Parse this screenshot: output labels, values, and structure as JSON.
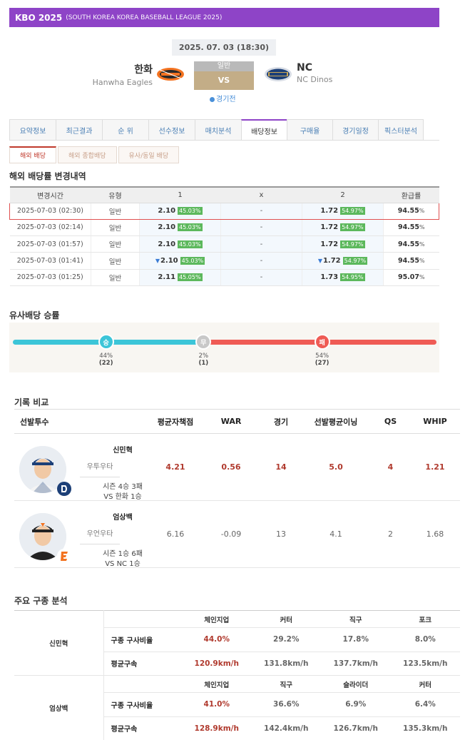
{
  "league": {
    "name": "KBO 2025",
    "sub": "(SOUTH KOREA KOREA BASEBALL LEAGUE 2025)"
  },
  "match": {
    "datetime": "2025. 07. 03 (18:30)",
    "home": {
      "kr": "한화",
      "en": "Hanwha Eagles"
    },
    "away": {
      "kr": "NC",
      "en": "NC Dinos"
    },
    "type": "일반",
    "vs": "VS",
    "status": "경기전"
  },
  "tabs": [
    "요약정보",
    "최근결과",
    "순 위",
    "선수정보",
    "매치분석",
    "배당정보",
    "구매율",
    "경기일정",
    "픽스터분석"
  ],
  "active_tab": 5,
  "subtabs": [
    "해외 배당",
    "해외 종합배당",
    "유사/동일 배당"
  ],
  "odds_section": {
    "title": "해외 배당률 변경내역",
    "headers": [
      "변경시간",
      "유형",
      "1",
      "x",
      "2",
      "환급률"
    ],
    "rows": [
      {
        "time": "2025-07-03 (02:30)",
        "type": "일반",
        "o1": "2.10",
        "p1": "45.03",
        "ox": "-",
        "o2": "1.72",
        "p2": "54.97",
        "refund": "94.55",
        "down1": false,
        "down2": false
      },
      {
        "time": "2025-07-03 (02:14)",
        "type": "일반",
        "o1": "2.10",
        "p1": "45.03",
        "ox": "-",
        "o2": "1.72",
        "p2": "54.97",
        "refund": "94.55",
        "down1": false,
        "down2": false
      },
      {
        "time": "2025-07-03 (01:57)",
        "type": "일반",
        "o1": "2.10",
        "p1": "45.03",
        "ox": "-",
        "o2": "1.72",
        "p2": "54.97",
        "refund": "94.55",
        "down1": false,
        "down2": false
      },
      {
        "time": "2025-07-03 (01:41)",
        "type": "일반",
        "o1": "2.10",
        "p1": "45.03",
        "ox": "-",
        "o2": "1.72",
        "p2": "54.97",
        "refund": "94.55",
        "down1": true,
        "down2": true
      },
      {
        "time": "2025-07-03 (01:25)",
        "type": "일반",
        "o1": "2.11",
        "p1": "45.05",
        "ox": "-",
        "o2": "1.73",
        "p2": "54.95",
        "refund": "95.07",
        "down1": false,
        "down2": false
      }
    ]
  },
  "similar": {
    "title": "유사배당 승률",
    "win": {
      "label": "승",
      "pct": "44%",
      "count": "(22)",
      "value": 44
    },
    "draw": {
      "label": "무",
      "pct": "2%",
      "count": "(1)",
      "value": 2
    },
    "loss": {
      "label": "패",
      "pct": "54%",
      "count": "(27)",
      "value": 54
    },
    "colors": {
      "win": "#3cc5d8",
      "draw": "#cccccc",
      "loss": "#ef5b55"
    }
  },
  "records": {
    "title": "기록 비교",
    "headers": [
      "선발투수",
      "평균자책점",
      "WAR",
      "경기",
      "선발평균이닝",
      "QS",
      "WHIP"
    ],
    "pitchers": [
      {
        "name": "신민혁",
        "hand": "우투우타",
        "season": "시즌 4승 3패",
        "vs": "VS 한화 1승",
        "era": "4.21",
        "war": "0.56",
        "games": "14",
        "avg_ip": "5.0",
        "qs": "4",
        "whip": "1.21",
        "team": "nc"
      },
      {
        "name": "엄상백",
        "hand": "우언우타",
        "season": "시즌 1승 6패",
        "vs": "VS NC 1승",
        "era": "6.16",
        "war": "-0.09",
        "games": "13",
        "avg_ip": "4.1",
        "qs": "2",
        "whip": "1.68",
        "team": "hanwha"
      }
    ]
  },
  "pitch_analysis": {
    "title": "주요 구종 분석",
    "label_ratio": "구종 구사비율",
    "label_speed": "평균구속",
    "pitchers": [
      {
        "name": "신민혁",
        "pitches": [
          "체인지업",
          "커터",
          "직구",
          "포크"
        ],
        "ratio": [
          "44.0%",
          "29.2%",
          "17.8%",
          "8.0%"
        ],
        "speed": [
          "120.9km/h",
          "131.8km/h",
          "137.7km/h",
          "123.5km/h"
        ]
      },
      {
        "name": "엄상백",
        "pitches": [
          "체인지업",
          "직구",
          "슬라이더",
          "커터"
        ],
        "ratio": [
          "41.0%",
          "36.6%",
          "6.9%",
          "6.4%"
        ],
        "speed": [
          "128.9km/h",
          "142.4km/h",
          "126.7km/h",
          "135.3km/h"
        ]
      }
    ]
  }
}
